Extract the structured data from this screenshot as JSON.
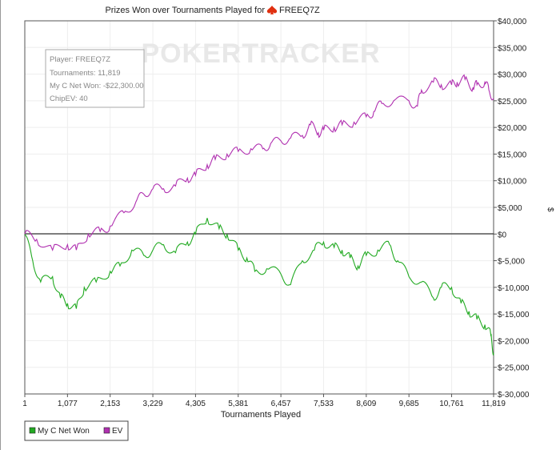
{
  "chart_data": {
    "type": "line",
    "title": "Prizes Won over Tournaments Played for",
    "player": "FREEQ7Z",
    "xlabel": "Tournaments Played",
    "ylabel": "$",
    "xlim": [
      1,
      11819
    ],
    "ylim": [
      -30000,
      40000
    ],
    "x_ticks": [
      "1",
      "1,077",
      "2,153",
      "3,229",
      "4,305",
      "5,381",
      "6,457",
      "7,533",
      "8,609",
      "9,685",
      "10,761",
      "11,819"
    ],
    "x_tick_values": [
      1,
      1077,
      2153,
      3229,
      4305,
      5381,
      6457,
      7533,
      8609,
      9685,
      10761,
      11819
    ],
    "y_ticks": [
      "$40,000",
      "$35,000",
      "$30,000",
      "$25,000",
      "$20,000",
      "$15,000",
      "$10,000",
      "$5,000",
      "$0",
      "$-5,000",
      "$-10,000",
      "$-15,000",
      "$-20,000",
      "$-25,000",
      "$-30,000"
    ],
    "y_tick_values": [
      40000,
      35000,
      30000,
      25000,
      20000,
      15000,
      10000,
      5000,
      0,
      -5000,
      -10000,
      -15000,
      -20000,
      -25000,
      -30000
    ],
    "grid": true,
    "legend_placement": "bottom-left",
    "series": [
      {
        "name": "My C Net Won",
        "color": "#22aa22",
        "x": [
          1,
          200,
          400,
          700,
          900,
          1077,
          1300,
          1500,
          1800,
          2153,
          2400,
          2700,
          3000,
          3229,
          3500,
          3800,
          4100,
          4305,
          4600,
          4900,
          5100,
          5381,
          5600,
          5800,
          6100,
          6457,
          6700,
          7000,
          7300,
          7533,
          7800,
          8000,
          8200,
          8400,
          8609,
          8900,
          9200,
          9400,
          9685,
          10000,
          10300,
          10500,
          10761,
          11000,
          11200,
          11400,
          11600,
          11750,
          11819
        ],
        "values": [
          0,
          -5000,
          -9000,
          -8000,
          -12000,
          -13000,
          -14000,
          -10000,
          -9000,
          -7000,
          -6000,
          -3000,
          -4000,
          -3000,
          -2000,
          -3500,
          -1500,
          0,
          3000,
          1000,
          0,
          -3000,
          -4500,
          -7000,
          -6500,
          -7500,
          -9500,
          -5000,
          -3000,
          -1500,
          -2500,
          -3000,
          -4500,
          -6000,
          -4000,
          -3000,
          -2000,
          -5000,
          -8000,
          -9000,
          -12000,
          -10000,
          -10000,
          -13000,
          -14500,
          -16000,
          -17000,
          -19000,
          -22300
        ]
      },
      {
        "name": "EV",
        "color": "#b030b0",
        "x": [
          1,
          300,
          700,
          1077,
          1300,
          1600,
          1900,
          2153,
          2500,
          2800,
          3000,
          3229,
          3500,
          3800,
          4100,
          4305,
          4600,
          4800,
          5100,
          5381,
          5700,
          6000,
          6200,
          6457,
          6700,
          7000,
          7200,
          7400,
          7533,
          7800,
          8000,
          8300,
          8609,
          8800,
          9000,
          9300,
          9685,
          9900,
          10000,
          10300,
          10500,
          10761,
          10900,
          11100,
          11300,
          11400,
          11600,
          11700,
          11819
        ],
        "values": [
          0,
          -1000,
          -3000,
          -2000,
          -3000,
          0,
          500,
          1500,
          4000,
          6000,
          7500,
          8500,
          8500,
          9000,
          10500,
          11000,
          13000,
          14000,
          15000,
          15500,
          16000,
          16000,
          17000,
          17500,
          18000,
          18500,
          20500,
          19000,
          19500,
          20000,
          20500,
          21000,
          22000,
          23000,
          24500,
          25000,
          25000,
          24000,
          27000,
          28500,
          28000,
          28000,
          28500,
          29000,
          27500,
          28000,
          28500,
          27000,
          25500
        ]
      }
    ]
  },
  "info_box": {
    "player": "Player: FREEQ7Z",
    "tournaments": "Tournaments: 11,819",
    "net_won": "My C Net Won: -$22,300.00",
    "chipev": "ChipEV: 40"
  },
  "watermark": "POKERTRACKER",
  "legend": [
    "My C Net Won",
    "EV"
  ]
}
